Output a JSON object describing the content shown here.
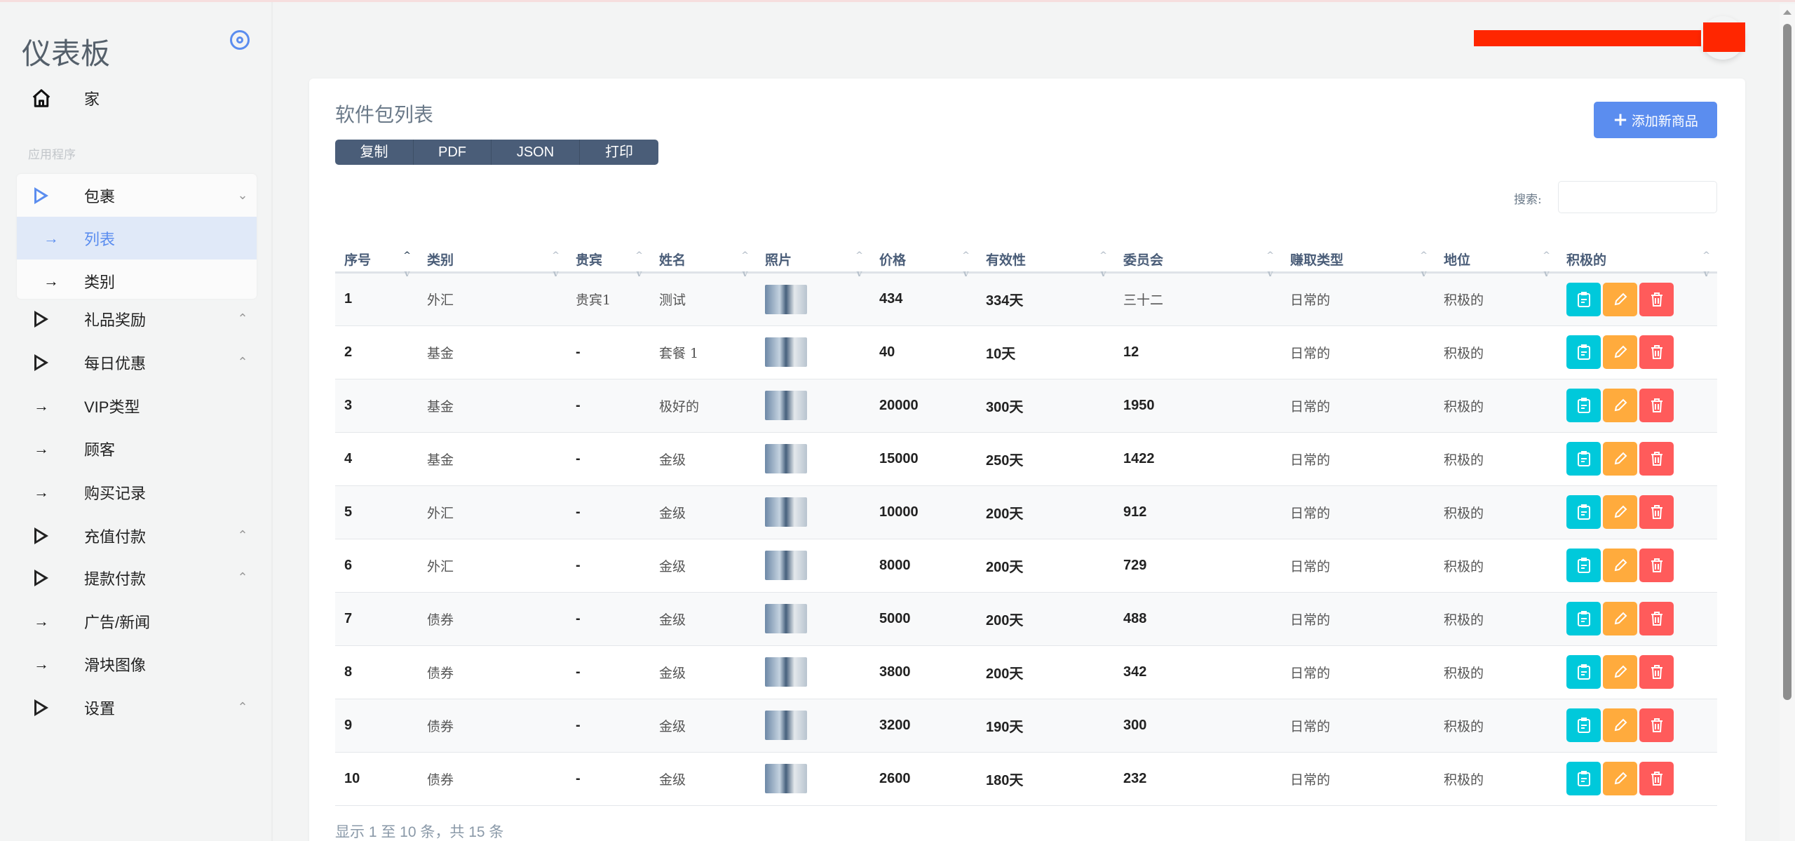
{
  "sidebar": {
    "brand": "仪表板",
    "home": "家",
    "section": "应用程序",
    "items": [
      {
        "label": "包裹",
        "type": "group",
        "expanded": true
      },
      {
        "label": "列表",
        "type": "sub",
        "active": true
      },
      {
        "label": "类别",
        "type": "sub"
      },
      {
        "label": "礼品奖励",
        "type": "group"
      },
      {
        "label": "每日优惠",
        "type": "group"
      },
      {
        "label": "VIP类型",
        "type": "link"
      },
      {
        "label": "顾客",
        "type": "link"
      },
      {
        "label": "购买记录",
        "type": "link"
      },
      {
        "label": "充值付款",
        "type": "group"
      },
      {
        "label": "提款付款",
        "type": "group"
      },
      {
        "label": "广告/新闻",
        "type": "link"
      },
      {
        "label": "滑块图像",
        "type": "link"
      },
      {
        "label": "设置",
        "type": "group"
      }
    ]
  },
  "card": {
    "title": "软件包列表",
    "export_buttons": [
      "复制",
      "PDF",
      "JSON",
      "打印"
    ],
    "add_button": "添加新商品",
    "search_label": "搜索:",
    "search_value": "",
    "footer": "显示 1 至 10 条，共 15 条"
  },
  "table": {
    "columns": [
      "序号",
      "类别",
      "贵宾",
      "姓名",
      "照片",
      "价格",
      "有效性",
      "委员会",
      "赚取类型",
      "地位",
      "积极的"
    ],
    "sorted_column": "序号",
    "rows": [
      [
        "1",
        "外汇",
        "贵宾1",
        "测试",
        "",
        "434",
        "334天",
        "三十二",
        "日常的",
        "积极的"
      ],
      [
        "2",
        "基金",
        "-",
        "套餐 1",
        "",
        "40",
        "10天",
        "12",
        "日常的",
        "积极的"
      ],
      [
        "3",
        "基金",
        "-",
        "极好的",
        "",
        "20000",
        "300天",
        "1950",
        "日常的",
        "积极的"
      ],
      [
        "4",
        "基金",
        "-",
        "金级",
        "",
        "15000",
        "250天",
        "1422",
        "日常的",
        "积极的"
      ],
      [
        "5",
        "外汇",
        "-",
        "金级",
        "",
        "10000",
        "200天",
        "912",
        "日常的",
        "积极的"
      ],
      [
        "6",
        "外汇",
        "-",
        "金级",
        "",
        "8000",
        "200天",
        "729",
        "日常的",
        "积极的"
      ],
      [
        "7",
        "债券",
        "-",
        "金级",
        "",
        "5000",
        "200天",
        "488",
        "日常的",
        "积极的"
      ],
      [
        "8",
        "债券",
        "-",
        "金级",
        "",
        "3800",
        "200天",
        "342",
        "日常的",
        "积极的"
      ],
      [
        "9",
        "债券",
        "-",
        "金级",
        "",
        "3200",
        "190天",
        "300",
        "日常的",
        "积极的"
      ],
      [
        "10",
        "债券",
        "-",
        "金级",
        "",
        "2600",
        "180天",
        "232",
        "日常的",
        "积极的"
      ]
    ]
  },
  "colors": {
    "accent": "#5b8def",
    "export_bg": "#4a5d78",
    "view": "#00c9db",
    "edit": "#ffab3d",
    "delete": "#ff5b5b"
  }
}
